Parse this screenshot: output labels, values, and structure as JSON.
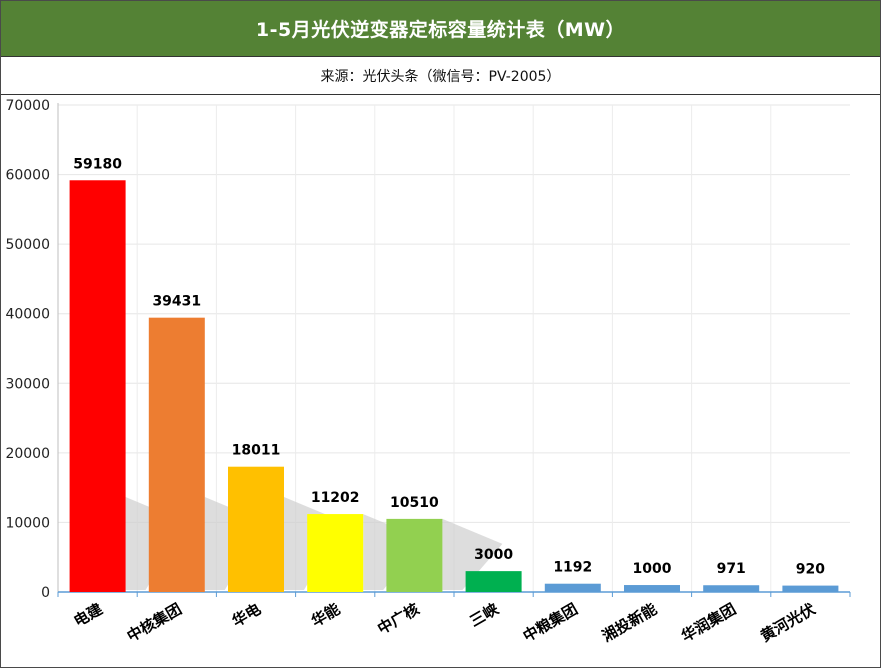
{
  "title": "1-5月光伏逆变器定标容量统计表（MW）",
  "subtitle": "来源：光伏头条（微信号：PV-2005）",
  "chart_data": {
    "type": "bar",
    "title": "1-5月光伏逆变器定标容量统计表（MW）",
    "subtitle": "来源：光伏头条（微信号：PV-2005）",
    "categories": [
      "电建",
      "中核集团",
      "华电",
      "华能",
      "中广核",
      "三峡",
      "中粮集团",
      "湘投新能",
      "华润集团",
      "黄河光伏"
    ],
    "values": [
      59180,
      39431,
      18011,
      11202,
      10510,
      3000,
      1192,
      1000,
      971,
      920
    ],
    "colors": [
      "#ff0000",
      "#ed7d31",
      "#ffc000",
      "#ffff00",
      "#92d050",
      "#00b050",
      "#5b9bd5",
      "#5b9bd5",
      "#5b9bd5",
      "#5b9bd5"
    ],
    "y_ticks": [
      "0",
      "10000",
      "20000",
      "30000",
      "40000",
      "50000",
      "60000",
      "70000"
    ],
    "ylim": [
      0,
      70000
    ],
    "grid": true,
    "legend": "none"
  }
}
